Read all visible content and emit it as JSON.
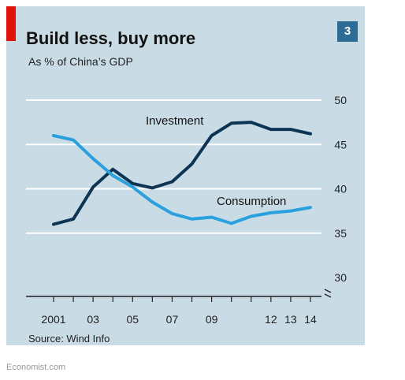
{
  "header": {
    "title": "Build less, buy more",
    "subtitle": "As % of China’s GDP",
    "chart_number": "3"
  },
  "footer": {
    "source": "Source: Wind Info",
    "publisher": "Economist.com"
  },
  "colors": {
    "panel": "#c9dbe5",
    "accent_tag": "#e3120b",
    "badge": "#2e6b95",
    "investment": "#0d3553",
    "consumption": "#2aa0dc",
    "grid": "#ffffff"
  },
  "chart_data": {
    "type": "line",
    "title": "Build less, buy more",
    "subtitle": "As % of China’s GDP",
    "x": [
      2001,
      2002,
      2003,
      2004,
      2005,
      2006,
      2007,
      2008,
      2009,
      2010,
      2011,
      2012,
      2013,
      2014
    ],
    "x_tick_labels": [
      {
        "x": 2001,
        "label": "2001"
      },
      {
        "x": 2003,
        "label": "03"
      },
      {
        "x": 2005,
        "label": "05"
      },
      {
        "x": 2007,
        "label": "07"
      },
      {
        "x": 2009,
        "label": "09"
      },
      {
        "x": 2012,
        "label": "12"
      },
      {
        "x": 2013,
        "label": "13"
      },
      {
        "x": 2014,
        "label": "14"
      }
    ],
    "y_ticks": [
      30,
      35,
      40,
      45,
      50
    ],
    "ylim": [
      30,
      50
    ],
    "y_axis_position": "right",
    "y_axis_break": true,
    "grid": true,
    "series": [
      {
        "name": "Investment",
        "color": "#0d3553",
        "values": [
          36.0,
          36.6,
          40.2,
          42.2,
          40.6,
          40.1,
          40.8,
          42.8,
          46.0,
          47.4,
          47.5,
          46.7,
          46.7,
          46.2
        ]
      },
      {
        "name": "Consumption",
        "color": "#2aa0dc",
        "values": [
          46.0,
          45.5,
          43.4,
          41.5,
          40.2,
          38.5,
          37.2,
          36.6,
          36.8,
          36.1,
          36.9,
          37.3,
          37.5,
          37.9
        ]
      }
    ]
  }
}
